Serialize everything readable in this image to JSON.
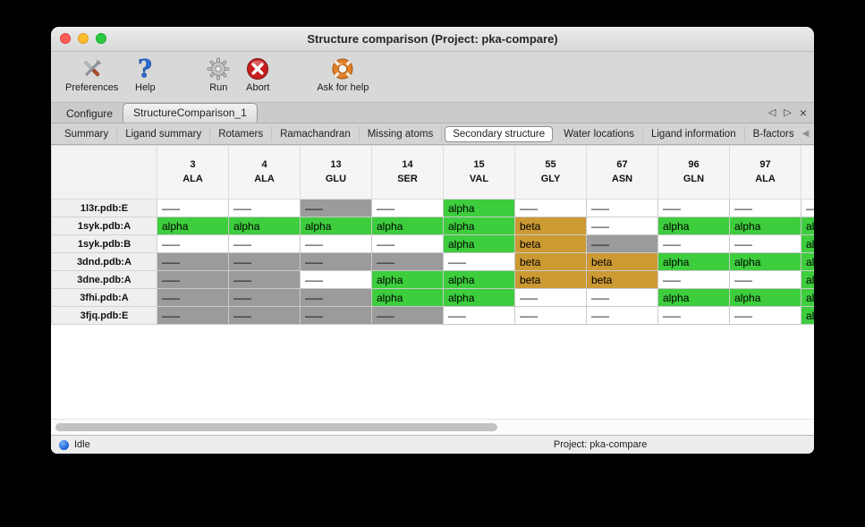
{
  "window": {
    "title": "Structure comparison (Project: pka-compare)"
  },
  "toolbar": {
    "items": [
      {
        "id": "preferences",
        "label": "Preferences",
        "icon": "tools-icon"
      },
      {
        "id": "help",
        "label": "Help",
        "icon": "question-mark-icon"
      },
      {
        "id": "run",
        "label": "Run",
        "icon": "gear-icon"
      },
      {
        "id": "abort",
        "label": "Abort",
        "icon": "abort-cross-icon"
      },
      {
        "id": "ask-for-help",
        "label": "Ask for help",
        "icon": "life-ring-icon"
      }
    ]
  },
  "primary_tabs": {
    "items": [
      {
        "label": "Configure",
        "selected": false
      },
      {
        "label": "StructureComparison_1",
        "selected": true
      }
    ],
    "nav": {
      "left": "◁",
      "right": "▷",
      "close": "×"
    }
  },
  "secondary_tabs": {
    "items": [
      {
        "label": "Summary",
        "selected": false
      },
      {
        "label": "Ligand summary",
        "selected": false
      },
      {
        "label": "Rotamers",
        "selected": false
      },
      {
        "label": "Ramachandran",
        "selected": false
      },
      {
        "label": "Missing atoms",
        "selected": false
      },
      {
        "label": "Secondary structure",
        "selected": true
      },
      {
        "label": "Water locations",
        "selected": false
      },
      {
        "label": "Ligand information",
        "selected": false
      },
      {
        "label": "B-factors",
        "selected": false
      }
    ],
    "nav": {
      "left": "◀",
      "right": "▶"
    }
  },
  "table": {
    "columns": [
      {
        "num": "3",
        "res": "ALA"
      },
      {
        "num": "4",
        "res": "ALA"
      },
      {
        "num": "13",
        "res": "GLU"
      },
      {
        "num": "14",
        "res": "SER"
      },
      {
        "num": "15",
        "res": "VAL"
      },
      {
        "num": "55",
        "res": "GLY"
      },
      {
        "num": "67",
        "res": "ASN"
      },
      {
        "num": "96",
        "res": "GLN"
      },
      {
        "num": "97",
        "res": "ALA"
      }
    ],
    "partial_last_column": true,
    "colors": {
      "none": "#ffffff",
      "missing": "#9b9b9b",
      "alpha": "#3dcd3d",
      "beta": "#cc9933"
    },
    "rows": [
      {
        "name": "1l3r.pdb:E",
        "cells": [
          {
            "text": "–––",
            "type": "none"
          },
          {
            "text": "–––",
            "type": "none"
          },
          {
            "text": "–––",
            "type": "missing"
          },
          {
            "text": "–––",
            "type": "none"
          },
          {
            "text": "alpha",
            "type": "alpha"
          },
          {
            "text": "–––",
            "type": "none"
          },
          {
            "text": "–––",
            "type": "none"
          },
          {
            "text": "–––",
            "type": "none"
          },
          {
            "text": "–––",
            "type": "none"
          },
          {
            "text": "–––",
            "type": "none"
          }
        ]
      },
      {
        "name": "1syk.pdb:A",
        "cells": [
          {
            "text": "alpha",
            "type": "alpha"
          },
          {
            "text": "alpha",
            "type": "alpha"
          },
          {
            "text": "alpha",
            "type": "alpha"
          },
          {
            "text": "alpha",
            "type": "alpha"
          },
          {
            "text": "alpha",
            "type": "alpha"
          },
          {
            "text": "beta",
            "type": "beta"
          },
          {
            "text": "–––",
            "type": "none"
          },
          {
            "text": "alpha",
            "type": "alpha"
          },
          {
            "text": "alpha",
            "type": "alpha"
          },
          {
            "text": "alpha",
            "type": "alpha"
          }
        ]
      },
      {
        "name": "1syk.pdb:B",
        "cells": [
          {
            "text": "–––",
            "type": "none"
          },
          {
            "text": "–––",
            "type": "none"
          },
          {
            "text": "–––",
            "type": "none"
          },
          {
            "text": "–––",
            "type": "none"
          },
          {
            "text": "alpha",
            "type": "alpha"
          },
          {
            "text": "beta",
            "type": "beta"
          },
          {
            "text": "–––",
            "type": "missing"
          },
          {
            "text": "–––",
            "type": "none"
          },
          {
            "text": "–––",
            "type": "none"
          },
          {
            "text": "alpha",
            "type": "alpha"
          }
        ]
      },
      {
        "name": "3dnd.pdb:A",
        "cells": [
          {
            "text": "–––",
            "type": "missing"
          },
          {
            "text": "–––",
            "type": "missing"
          },
          {
            "text": "–––",
            "type": "missing"
          },
          {
            "text": "–––",
            "type": "missing"
          },
          {
            "text": "–––",
            "type": "none"
          },
          {
            "text": "beta",
            "type": "beta"
          },
          {
            "text": "beta",
            "type": "beta"
          },
          {
            "text": "alpha",
            "type": "alpha"
          },
          {
            "text": "alpha",
            "type": "alpha"
          },
          {
            "text": "alpha",
            "type": "alpha"
          }
        ]
      },
      {
        "name": "3dne.pdb:A",
        "cells": [
          {
            "text": "–––",
            "type": "missing"
          },
          {
            "text": "–––",
            "type": "missing"
          },
          {
            "text": "–––",
            "type": "none"
          },
          {
            "text": "alpha",
            "type": "alpha"
          },
          {
            "text": "alpha",
            "type": "alpha"
          },
          {
            "text": "beta",
            "type": "beta"
          },
          {
            "text": "beta",
            "type": "beta"
          },
          {
            "text": "–––",
            "type": "none"
          },
          {
            "text": "–––",
            "type": "none"
          },
          {
            "text": "alpha",
            "type": "alpha"
          }
        ]
      },
      {
        "name": "3fhi.pdb:A",
        "cells": [
          {
            "text": "–––",
            "type": "missing"
          },
          {
            "text": "–––",
            "type": "missing"
          },
          {
            "text": "–––",
            "type": "missing"
          },
          {
            "text": "alpha",
            "type": "alpha"
          },
          {
            "text": "alpha",
            "type": "alpha"
          },
          {
            "text": "–––",
            "type": "none"
          },
          {
            "text": "–––",
            "type": "none"
          },
          {
            "text": "alpha",
            "type": "alpha"
          },
          {
            "text": "alpha",
            "type": "alpha"
          },
          {
            "text": "alpha",
            "type": "alpha"
          }
        ]
      },
      {
        "name": "3fjq.pdb:E",
        "cells": [
          {
            "text": "–––",
            "type": "missing"
          },
          {
            "text": "–––",
            "type": "missing"
          },
          {
            "text": "–––",
            "type": "missing"
          },
          {
            "text": "–––",
            "type": "missing"
          },
          {
            "text": "–––",
            "type": "none"
          },
          {
            "text": "–––",
            "type": "none"
          },
          {
            "text": "–––",
            "type": "none"
          },
          {
            "text": "–––",
            "type": "none"
          },
          {
            "text": "–––",
            "type": "none"
          },
          {
            "text": "alpha",
            "type": "alpha"
          }
        ]
      }
    ]
  },
  "statusbar": {
    "state": "Idle",
    "project": "Project: pka-compare"
  }
}
